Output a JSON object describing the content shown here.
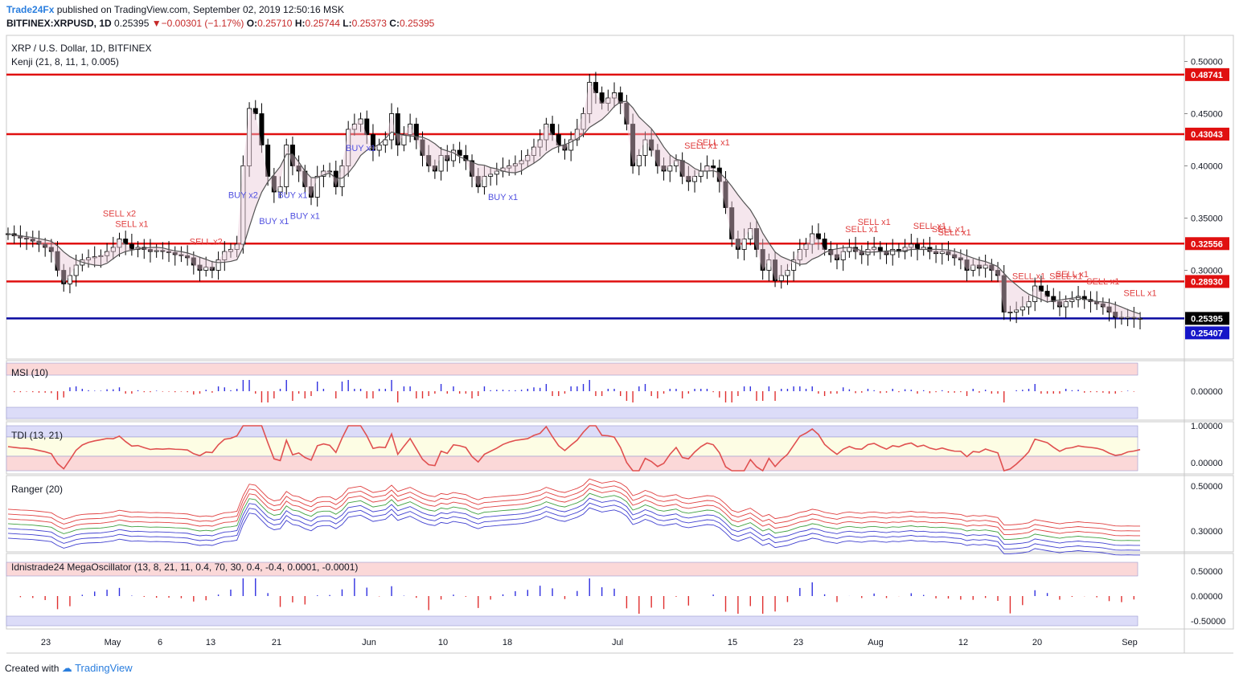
{
  "header": {
    "brand": "Trade24Fx",
    "published_text": "published on TradingView.com, September 02, 2019 12:50:16 MSK",
    "symbol": "BITFINEX:XRPUSD, 1D",
    "last": "0.25395",
    "change": "−0.00301 (−1.17%)",
    "o_label": "O:",
    "o": "0.25710",
    "h_label": "H:",
    "h": "0.25744",
    "l_label": "L:",
    "l": "0.25373",
    "c_label": "C:",
    "c": "0.25395"
  },
  "main_pane": {
    "title": "XRP / U.S. Dollar, 1D, BITFINEX",
    "indicator": "Kenji (21, 8, 11, 1, 0.005)"
  },
  "panes": {
    "msi": "MSI (10)",
    "tdi": "TDI (13, 21)",
    "ranger": "Ranger (20)",
    "mega": "Idnistrade24 MegaOscillator (13, 8, 21, 11, 0.4, 70, 30, 0.4, -0.4, 0.0001, -0.0001)"
  },
  "footer": {
    "created_with": "Created with",
    "brand": "TradingView"
  },
  "colors": {
    "up": "#ffffff",
    "down": "#000000",
    "level_line": "#e01010",
    "current_line": "#0a0aa0",
    "buy_marker": "#5050e0",
    "sell_marker": "#e04040",
    "kenji_line": "#555555"
  },
  "chart_data": {
    "type": "candlestick",
    "price_axis": {
      "ticks": [
        "0.50000",
        "0.45000",
        "0.40000",
        "0.35000",
        "0.30000"
      ],
      "ylim": [
        0.215,
        0.525
      ]
    },
    "x_axis_labels": [
      "23",
      "May",
      "6",
      "13",
      "21",
      "Jun",
      "10",
      "18",
      "Jul",
      "15",
      "23",
      "Aug",
      "12",
      "20",
      "Sep"
    ],
    "levels": [
      {
        "value": 0.48741,
        "label": "0.48741"
      },
      {
        "value": 0.43043,
        "label": "0.43043"
      },
      {
        "value": 0.32556,
        "label": "0.32556"
      },
      {
        "value": 0.2893,
        "label": "0.28930"
      }
    ],
    "current_price": {
      "value": 0.25395,
      "label": "0.25395"
    },
    "current_level": {
      "value": 0.25407,
      "label": "0.25407"
    },
    "candle_closes": [
      0.335,
      0.333,
      0.331,
      0.33,
      0.328,
      0.325,
      0.322,
      0.318,
      0.3,
      0.287,
      0.295,
      0.305,
      0.31,
      0.312,
      0.313,
      0.314,
      0.318,
      0.322,
      0.33,
      0.325,
      0.32,
      0.322,
      0.32,
      0.318,
      0.319,
      0.318,
      0.317,
      0.315,
      0.314,
      0.312,
      0.305,
      0.3,
      0.303,
      0.3,
      0.31,
      0.318,
      0.32,
      0.325,
      0.4,
      0.455,
      0.45,
      0.42,
      0.39,
      0.375,
      0.38,
      0.42,
      0.4,
      0.395,
      0.38,
      0.37,
      0.39,
      0.395,
      0.395,
      0.38,
      0.4,
      0.435,
      0.44,
      0.445,
      0.43,
      0.415,
      0.42,
      0.425,
      0.45,
      0.42,
      0.43,
      0.44,
      0.425,
      0.41,
      0.4,
      0.395,
      0.41,
      0.405,
      0.415,
      0.41,
      0.405,
      0.39,
      0.38,
      0.39,
      0.392,
      0.395,
      0.398,
      0.4,
      0.402,
      0.405,
      0.41,
      0.418,
      0.425,
      0.44,
      0.43,
      0.42,
      0.415,
      0.425,
      0.435,
      0.45,
      0.48,
      0.47,
      0.46,
      0.465,
      0.47,
      0.46,
      0.44,
      0.4,
      0.41,
      0.425,
      0.415,
      0.4,
      0.395,
      0.4,
      0.405,
      0.39,
      0.385,
      0.39,
      0.395,
      0.4,
      0.398,
      0.385,
      0.36,
      0.33,
      0.32,
      0.33,
      0.34,
      0.32,
      0.3,
      0.31,
      0.29,
      0.295,
      0.3,
      0.31,
      0.32,
      0.325,
      0.335,
      0.33,
      0.32,
      0.315,
      0.31,
      0.318,
      0.322,
      0.318,
      0.315,
      0.32,
      0.322,
      0.318,
      0.315,
      0.32,
      0.318,
      0.322,
      0.325,
      0.32,
      0.322,
      0.318,
      0.316,
      0.318,
      0.315,
      0.312,
      0.31,
      0.3,
      0.305,
      0.302,
      0.305,
      0.3,
      0.295,
      0.26,
      0.26,
      0.262,
      0.265,
      0.27,
      0.285,
      0.28,
      0.275,
      0.27,
      0.265,
      0.27,
      0.272,
      0.275,
      0.272,
      0.27,
      0.268,
      0.265,
      0.26,
      0.255,
      0.254,
      0.255,
      0.254,
      0.254
    ],
    "buy_signals": [
      {
        "index": 38,
        "label": "BUY x2"
      },
      {
        "index": 43,
        "label": "BUY x1"
      },
      {
        "index": 46,
        "label": "BUY x1"
      },
      {
        "index": 48,
        "label": "BUY x1"
      },
      {
        "index": 57,
        "label": "BUY x1"
      },
      {
        "index": 80,
        "label": "BUY x1"
      }
    ],
    "sell_signals": [
      {
        "index": 18,
        "label": "SELL x2"
      },
      {
        "index": 20,
        "label": "SELL x1"
      },
      {
        "index": 32,
        "label": "SELL x2"
      },
      {
        "index": 112,
        "label": "SELL x1"
      },
      {
        "index": 114,
        "label": "SELL x1"
      },
      {
        "index": 138,
        "label": "SELL x1"
      },
      {
        "index": 140,
        "label": "SELL x1"
      },
      {
        "index": 149,
        "label": "SELL x1"
      },
      {
        "index": 152,
        "label": "SELL x1"
      },
      {
        "index": 153,
        "label": "SELL x1"
      },
      {
        "index": 165,
        "label": "SELL x1"
      },
      {
        "index": 171,
        "label": "SELL x1"
      },
      {
        "index": 172,
        "label": "SELL x1"
      },
      {
        "index": 177,
        "label": "SELL x1"
      },
      {
        "index": 183,
        "label": "SELL x1"
      }
    ],
    "msi_ticks": [
      "0.00000"
    ],
    "tdi_ticks": [
      "1.00000",
      "0.00000"
    ],
    "ranger_ticks": [
      "0.50000",
      "0.30000"
    ],
    "mega_ticks": [
      "0.50000",
      "0.00000",
      "-0.50000"
    ]
  }
}
